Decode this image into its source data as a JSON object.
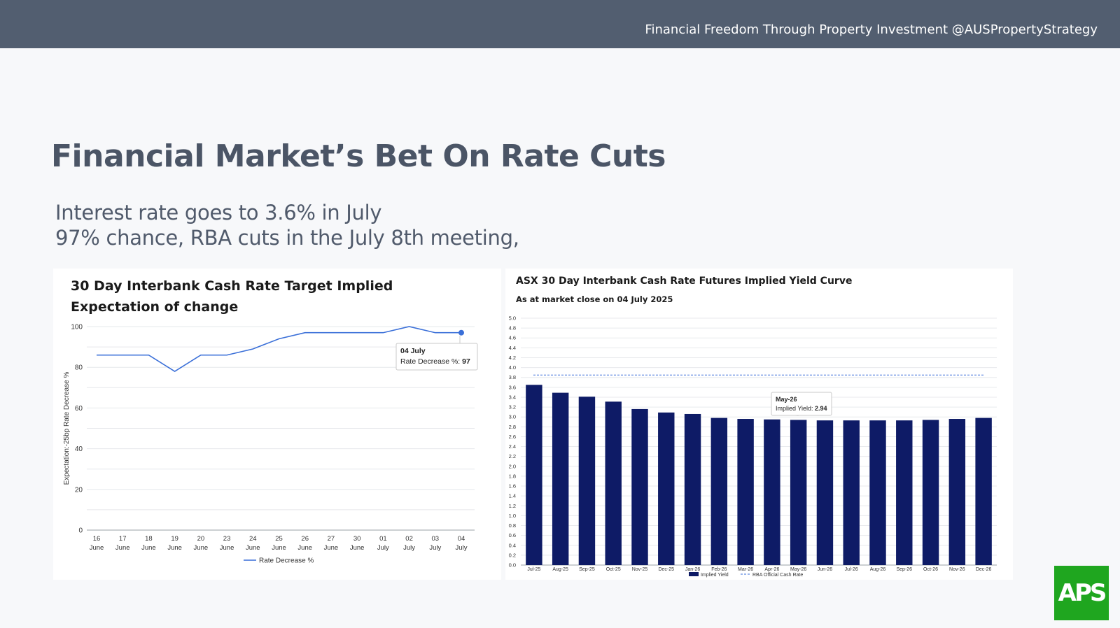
{
  "header": {
    "tagline": "Financial Freedom Through Property Investment @AUSPropertyStrategy"
  },
  "page": {
    "title": "Financial Market’s Bet On Rate Cuts",
    "subtitle_line1": "Interest rate goes to 3.6% in July",
    "subtitle_line2": "97% chance, RBA cuts in the July 8th meeting,"
  },
  "logo": {
    "text": "APS",
    "color": "#1fa61f"
  },
  "chart_data": [
    {
      "type": "line",
      "title": "30 Day Interbank Cash Rate Target Implied Expectation of change",
      "ylabel": "Expectation:-25bp Rate Decrease %",
      "xlabel": "",
      "ylim": [
        0,
        100
      ],
      "yticks": [
        "0",
        "20",
        "40",
        "60",
        "80",
        "100"
      ],
      "categories": [
        [
          "16",
          "June"
        ],
        [
          "17",
          "June"
        ],
        [
          "18",
          "June"
        ],
        [
          "19",
          "June"
        ],
        [
          "20",
          "June"
        ],
        [
          "23",
          "June"
        ],
        [
          "24",
          "June"
        ],
        [
          "25",
          "June"
        ],
        [
          "26",
          "June"
        ],
        [
          "27",
          "June"
        ],
        [
          "30",
          "June"
        ],
        [
          "01",
          "July"
        ],
        [
          "02",
          "July"
        ],
        [
          "03",
          "July"
        ],
        [
          "04",
          "July"
        ]
      ],
      "series": [
        {
          "name": "Rate Decrease %",
          "color": "#3a6fd8",
          "values": [
            86,
            86,
            86,
            78,
            86,
            86,
            89,
            94,
            97,
            97,
            97,
            97,
            100,
            97,
            97
          ]
        }
      ],
      "tooltip": {
        "title": "04 July",
        "label": "Rate Decrease %: ",
        "value": "97"
      },
      "legend": "bottom",
      "grid": true
    },
    {
      "type": "bar",
      "title": "ASX 30 Day Interbank Cash Rate Futures Implied Yield Curve",
      "subtitle": "As at market close on 04 July 2025",
      "ylim": [
        0,
        5.0
      ],
      "yticks": [
        "0.0",
        "0.2",
        "0.4",
        "0.6",
        "0.8",
        "1.0",
        "1.2",
        "1.4",
        "1.6",
        "1.8",
        "2.0",
        "2.2",
        "2.4",
        "2.6",
        "2.8",
        "3.0",
        "3.2",
        "3.4",
        "3.6",
        "3.8",
        "4.0",
        "4.2",
        "4.4",
        "4.6",
        "4.8",
        "5.0"
      ],
      "categories": [
        "Jul-25",
        "Aug-25",
        "Sep-25",
        "Oct-25",
        "Nov-25",
        "Dec-25",
        "Jan-26",
        "Feb-26",
        "Mar-26",
        "Apr-26",
        "May-26",
        "Jun-26",
        "Jul-26",
        "Aug-26",
        "Sep-26",
        "Oct-26",
        "Nov-26",
        "Dec-26"
      ],
      "series": [
        {
          "name": "Implied Yield",
          "color": "#0e1b66",
          "values": [
            3.65,
            3.49,
            3.41,
            3.31,
            3.16,
            3.09,
            3.06,
            2.98,
            2.96,
            2.95,
            2.94,
            2.93,
            2.93,
            2.93,
            2.93,
            2.94,
            2.96,
            2.98
          ]
        },
        {
          "name": "RBA Official Cash Rate",
          "color": "#3a6fd8",
          "style": "dashed",
          "value": 3.85
        }
      ],
      "tooltip": {
        "title": "May-26",
        "label": "Implied Yield: ",
        "value": "2.94"
      },
      "legend": "bottom",
      "grid": true
    }
  ]
}
